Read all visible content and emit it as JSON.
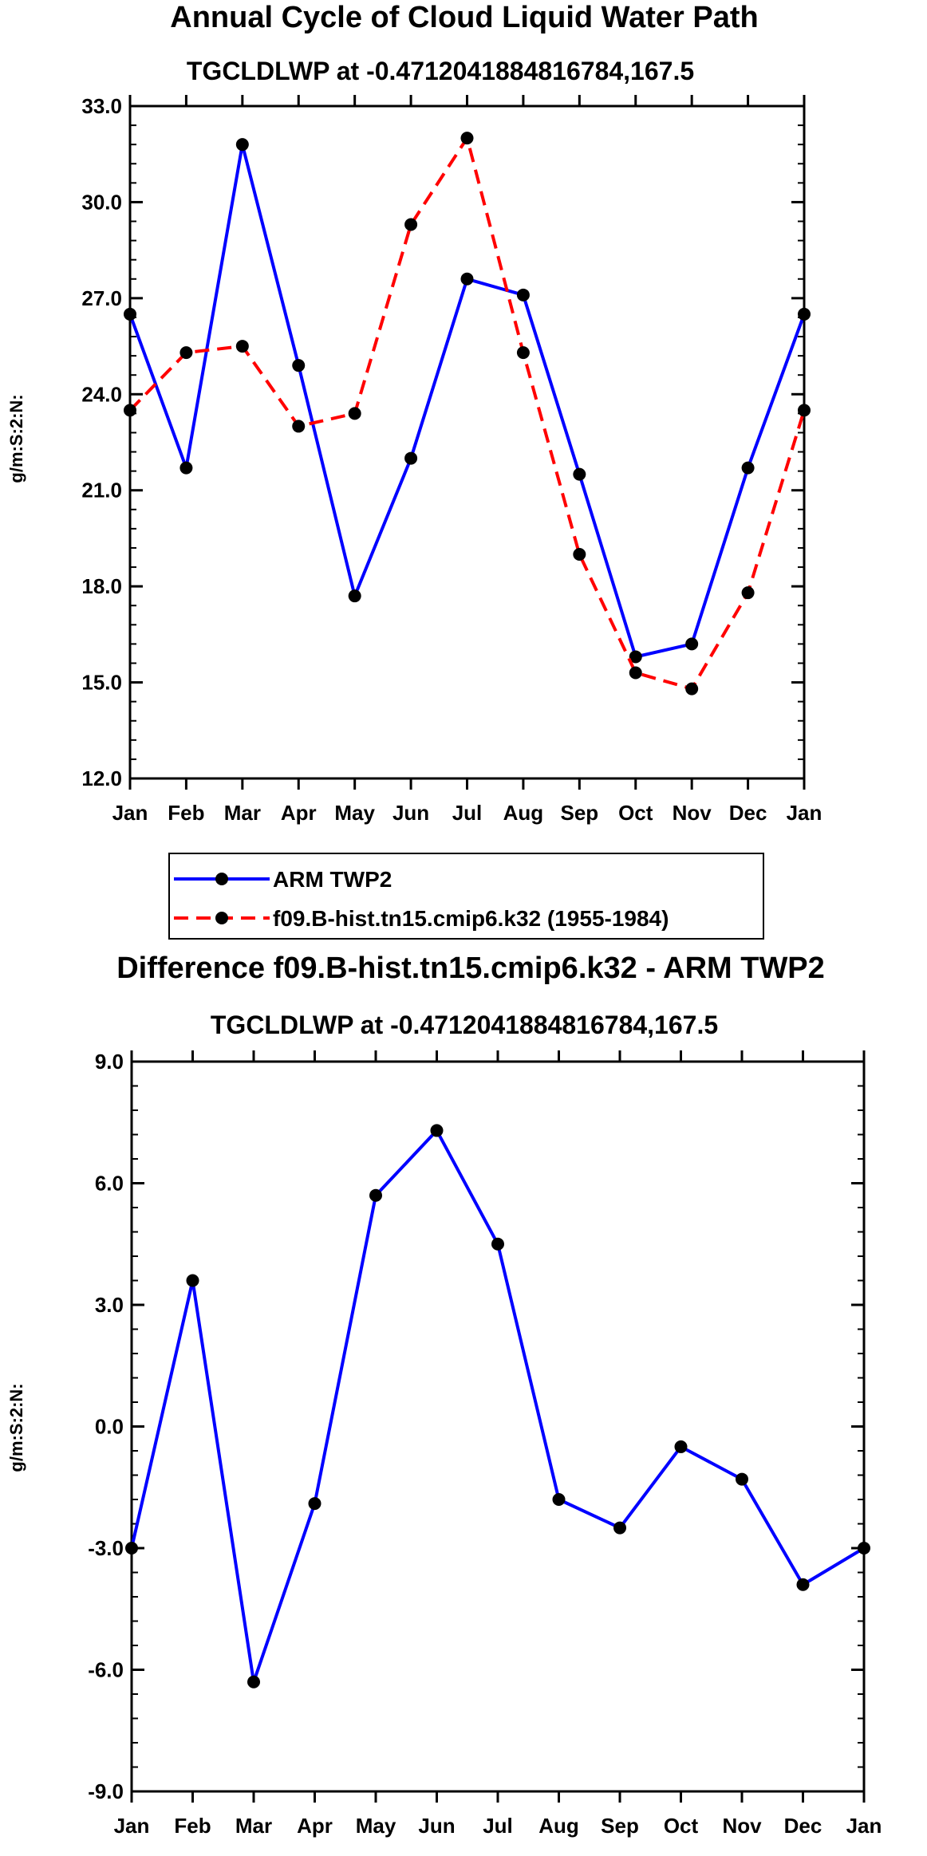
{
  "chart_data": [
    {
      "type": "line",
      "title": "Annual Cycle of Cloud Liquid Water Path",
      "subtitle": "TGCLDLWP at -0.4712041884816784,167.5",
      "xlabel": "",
      "ylabel": "g/m:S:2:N:",
      "categories": [
        "Jan",
        "Feb",
        "Mar",
        "Apr",
        "May",
        "Jun",
        "Jul",
        "Aug",
        "Sep",
        "Oct",
        "Nov",
        "Dec",
        "Jan"
      ],
      "ylim": [
        12.0,
        33.0
      ],
      "yticks": [
        "12.0",
        "15.0",
        "18.0",
        "21.0",
        "24.0",
        "27.0",
        "30.0",
        "33.0"
      ],
      "series": [
        {
          "name": "ARM TWP2",
          "color": "#0000ff",
          "dash": "solid",
          "values": [
            26.5,
            21.7,
            31.8,
            24.9,
            17.7,
            22.0,
            27.6,
            27.1,
            21.5,
            15.8,
            16.2,
            21.7,
            26.5
          ]
        },
        {
          "name": "f09.B-hist.tn15.cmip6.k32 (1955-1984)",
          "color": "#ff0000",
          "dash": "dashed",
          "values": [
            23.5,
            25.3,
            25.5,
            23.0,
            23.4,
            29.3,
            32.0,
            25.3,
            19.0,
            15.3,
            14.8,
            17.8,
            23.5
          ]
        }
      ],
      "legend_position": "bottom"
    },
    {
      "type": "line",
      "title": "Difference f09.B-hist.tn15.cmip6.k32 - ARM TWP2",
      "subtitle": "TGCLDLWP at -0.4712041884816784,167.5",
      "xlabel": "",
      "ylabel": "g/m:S:2:N:",
      "categories": [
        "Jan",
        "Feb",
        "Mar",
        "Apr",
        "May",
        "Jun",
        "Jul",
        "Aug",
        "Sep",
        "Oct",
        "Nov",
        "Dec",
        "Jan"
      ],
      "ylim": [
        -9.0,
        9.0
      ],
      "yticks": [
        "-9.0",
        "-6.0",
        "-3.0",
        "0.0",
        "3.0",
        "6.0",
        "9.0"
      ],
      "series": [
        {
          "name": "Difference",
          "color": "#0000ff",
          "dash": "solid",
          "values": [
            -3.0,
            3.6,
            -6.3,
            -1.9,
            5.7,
            7.3,
            4.5,
            -1.8,
            -2.5,
            -0.5,
            -1.3,
            -3.9,
            -3.0
          ]
        }
      ]
    }
  ]
}
